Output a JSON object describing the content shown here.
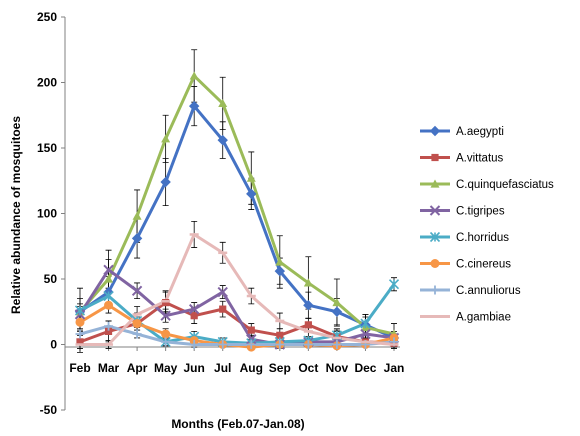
{
  "chart_data": {
    "type": "line",
    "title": "",
    "xlabel": "Months (Feb.07-Jan.08)",
    "ylabel": "Relative abundance of mosquitoes",
    "categories": [
      "Feb",
      "Mar",
      "Apr",
      "May",
      "Jun",
      "Jul",
      "Aug",
      "Sep",
      "Oct",
      "Nov",
      "Dec",
      "Jan"
    ],
    "ylim": [
      -50,
      250
    ],
    "yticks": [
      "-50",
      "0",
      "50",
      "100",
      "150",
      "200",
      "250"
    ],
    "grid": false,
    "legend_position": "right",
    "series": [
      {
        "name": "A.aegypti",
        "color": "#4472C4",
        "marker": "diamond",
        "values": [
          25,
          40,
          81,
          124,
          182,
          156,
          115,
          56,
          30,
          25,
          15,
          5
        ],
        "errors": [
          10,
          12,
          15,
          18,
          15,
          14,
          12,
          10,
          10,
          10,
          8,
          5
        ]
      },
      {
        "name": "A.vittatus",
        "color": "#C0504D",
        "marker": "square",
        "values": [
          2,
          10,
          16,
          32,
          22,
          27,
          11,
          7,
          15,
          6,
          2,
          1
        ],
        "errors": [
          8,
          8,
          8,
          8,
          6,
          6,
          5,
          5,
          5,
          5,
          3,
          3
        ]
      },
      {
        "name": "C.quinquefasciatus",
        "color": "#9BBB59",
        "marker": "triangle",
        "values": [
          25,
          50,
          98,
          157,
          205,
          184,
          127,
          63,
          47,
          32,
          13,
          8
        ],
        "errors": [
          18,
          22,
          20,
          18,
          20,
          20,
          20,
          20,
          20,
          18,
          10,
          8
        ]
      },
      {
        "name": "C.tigripes",
        "color": "#8064A2",
        "marker": "x",
        "values": [
          23,
          57,
          41,
          22,
          27,
          40,
          4,
          0,
          2,
          2,
          8,
          5
        ],
        "errors": [
          6,
          8,
          6,
          5,
          5,
          5,
          3,
          3,
          3,
          3,
          3,
          3
        ]
      },
      {
        "name": "C.horridus",
        "color": "#4BACC6",
        "marker": "star",
        "values": [
          26,
          37,
          18,
          2,
          6,
          2,
          1,
          2,
          3,
          7,
          16,
          46
        ],
        "errors": [
          5,
          6,
          5,
          3,
          4,
          3,
          3,
          3,
          3,
          5,
          5,
          5
        ]
      },
      {
        "name": "C.cinereus",
        "color": "#F79646",
        "marker": "circle",
        "values": [
          17,
          30,
          16,
          8,
          3,
          0,
          -2,
          0,
          0,
          -1,
          0,
          5
        ],
        "errors": [
          6,
          6,
          5,
          4,
          3,
          2,
          2,
          2,
          2,
          2,
          2,
          3
        ]
      },
      {
        "name": "C.annuliorus",
        "color": "#95B3D7",
        "marker": "plus",
        "values": [
          8,
          14,
          8,
          2,
          0,
          0,
          0,
          0,
          0,
          0,
          0,
          2
        ],
        "errors": [
          4,
          4,
          3,
          3,
          2,
          2,
          2,
          2,
          2,
          2,
          2,
          2
        ]
      },
      {
        "name": "A.gambiae",
        "color": "#E6B9B8",
        "marker": "dash",
        "values": [
          0,
          0,
          23,
          33,
          84,
          70,
          37,
          18,
          10,
          5,
          2,
          0
        ],
        "errors": [
          3,
          3,
          6,
          8,
          10,
          8,
          6,
          6,
          5,
          5,
          3,
          3
        ]
      }
    ]
  }
}
